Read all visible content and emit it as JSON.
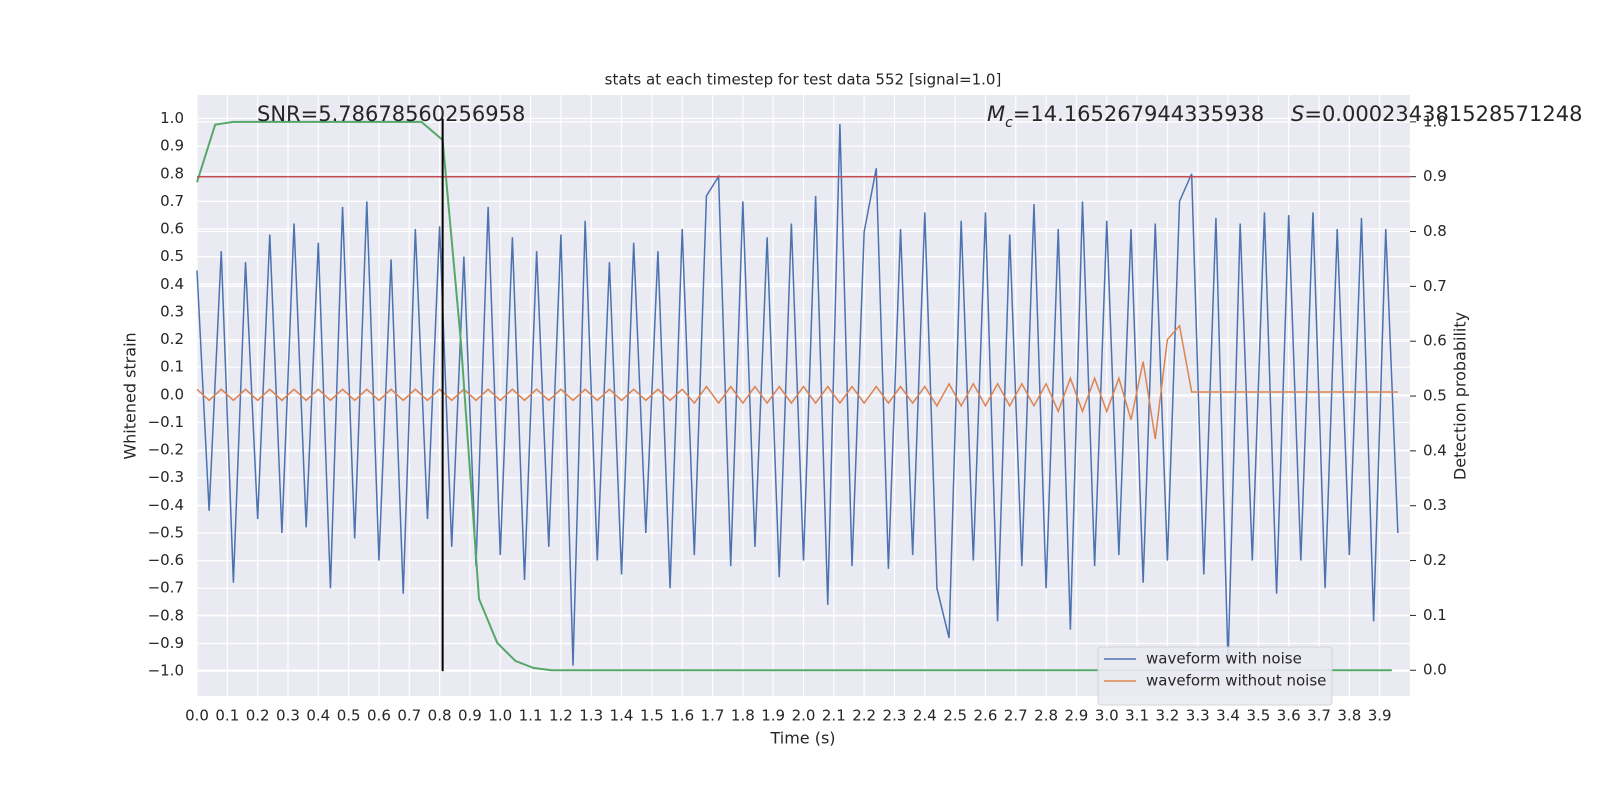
{
  "chart_data": {
    "type": "line",
    "title": "stats at each timestep for test data 552 [signal=1.0]",
    "xlabel": "Time (s)",
    "ylabel": "Whitened strain",
    "y2label": "Detection probability",
    "annotations": {
      "snr": "SNR=5.78678560256958",
      "mc": {
        "symbol": "M",
        "sub": "c",
        "text": "=14.165267944335938"
      },
      "s": {
        "symbol": "S",
        "text": "=0.000234381528571248"
      }
    },
    "grid": true,
    "legend": "lower right",
    "xlim": [
      0,
      4.0
    ],
    "ylim": [
      -1.09,
      1.085
    ],
    "y2lim": [
      -0.047,
      1.049
    ],
    "xticks": [
      {
        "value": 0,
        "label": "0.0"
      },
      0.1,
      0.2,
      0.3,
      0.4,
      0.5,
      0.6,
      0.7,
      0.8,
      0.9,
      {
        "value": 1,
        "label": "1.0"
      },
      1.1,
      1.2,
      1.3,
      1.4,
      1.5,
      1.6,
      1.7,
      1.8,
      1.9,
      {
        "value": 2,
        "label": "2.0"
      },
      2.1,
      2.2,
      2.3,
      2.4,
      2.5,
      2.6,
      2.7,
      2.8,
      2.9,
      {
        "value": 3,
        "label": "3.0"
      },
      3.1,
      3.2,
      3.3,
      3.4,
      3.5,
      3.6,
      3.7,
      3.8,
      3.9
    ],
    "yticks": [
      {
        "value": -1,
        "label": "−1.0"
      },
      {
        "value": -0.9,
        "label": "−0.9"
      },
      {
        "value": -0.8,
        "label": "−0.8"
      },
      {
        "value": -0.7,
        "label": "−0.7"
      },
      {
        "value": -0.6,
        "label": "−0.6"
      },
      {
        "value": -0.5,
        "label": "−0.5"
      },
      {
        "value": -0.4,
        "label": "−0.4"
      },
      {
        "value": -0.3,
        "label": "−0.3"
      },
      {
        "value": -0.2,
        "label": "−0.2"
      },
      {
        "value": -0.1,
        "label": "−0.1"
      },
      {
        "value": 0,
        "label": "0.0"
      },
      0.1,
      0.2,
      0.3,
      0.4,
      0.5,
      0.6,
      0.7,
      0.8,
      0.9,
      {
        "value": 1,
        "label": "1.0"
      }
    ],
    "y2ticks": [
      {
        "value": 0,
        "label": "0.0"
      },
      0.1,
      0.2,
      0.3,
      0.4,
      0.5,
      0.6,
      0.7,
      0.8,
      0.9,
      {
        "value": 1,
        "label": "1.0"
      }
    ],
    "x": [
      0,
      0.04,
      0.08,
      0.12,
      0.16,
      0.2,
      0.24,
      0.28,
      0.32,
      0.36,
      0.4,
      0.44,
      0.48,
      0.52,
      0.56,
      0.6,
      0.64,
      0.68,
      0.72,
      0.76,
      0.8,
      0.84,
      0.88,
      0.92,
      0.96,
      1.0,
      1.04,
      1.08,
      1.12,
      1.16,
      1.2,
      1.24,
      1.28,
      1.32,
      1.36,
      1.4,
      1.44,
      1.48,
      1.52,
      1.56,
      1.6,
      1.64,
      1.68,
      1.72,
      1.76,
      1.8,
      1.84,
      1.88,
      1.92,
      1.96,
      2.0,
      2.04,
      2.08,
      2.12,
      2.16,
      2.2,
      2.24,
      2.28,
      2.32,
      2.36,
      2.4,
      2.44,
      2.48,
      2.52,
      2.56,
      2.6,
      2.64,
      2.68,
      2.72,
      2.76,
      2.8,
      2.84,
      2.88,
      2.92,
      2.96,
      3.0,
      3.04,
      3.08,
      3.12,
      3.16,
      3.2,
      3.24,
      3.28,
      3.32,
      3.36,
      3.4,
      3.44,
      3.48,
      3.52,
      3.56,
      3.6,
      3.64,
      3.68,
      3.72,
      3.76,
      3.8,
      3.84,
      3.88,
      3.92,
      3.96
    ],
    "series": [
      {
        "name": "waveform with noise",
        "color": "#4c72b0",
        "values": [
          0.45,
          -0.42,
          0.52,
          -0.68,
          0.48,
          -0.45,
          0.58,
          -0.5,
          0.62,
          -0.48,
          0.55,
          -0.7,
          0.68,
          -0.52,
          0.7,
          -0.6,
          0.49,
          -0.72,
          0.6,
          -0.45,
          0.61,
          -0.55,
          0.5,
          -0.62,
          0.68,
          -0.58,
          0.57,
          -0.67,
          0.52,
          -0.55,
          0.58,
          -0.98,
          0.63,
          -0.6,
          0.48,
          -0.65,
          0.55,
          -0.5,
          0.52,
          -0.7,
          0.6,
          -0.58,
          0.72,
          0.79,
          -0.62,
          0.7,
          -0.55,
          0.57,
          -0.66,
          0.62,
          -0.6,
          0.72,
          -0.76,
          0.98,
          -0.62,
          0.59,
          0.82,
          -0.63,
          0.6,
          -0.58,
          0.66,
          -0.7,
          -0.88,
          0.63,
          -0.6,
          0.66,
          -0.82,
          0.58,
          -0.62,
          0.69,
          -0.7,
          0.6,
          -0.85,
          0.7,
          -0.62,
          0.63,
          -0.58,
          0.6,
          -0.68,
          0.62,
          -0.6,
          0.7,
          0.8,
          -0.65,
          0.64,
          -0.97,
          0.62,
          -0.6,
          0.66,
          -0.72,
          0.65,
          -0.6,
          0.66,
          -0.7,
          0.6,
          -0.58,
          0.64,
          -0.82,
          0.6,
          -0.5
        ]
      },
      {
        "name": "waveform without noise",
        "color": "#dd8452",
        "values": [
          0.02,
          -0.02,
          0.02,
          -0.02,
          0.02,
          -0.02,
          0.02,
          -0.02,
          0.02,
          -0.02,
          0.02,
          -0.02,
          0.02,
          -0.02,
          0.02,
          -0.02,
          0.02,
          -0.02,
          0.02,
          -0.02,
          0.02,
          -0.02,
          0.02,
          -0.02,
          0.02,
          -0.02,
          0.02,
          -0.02,
          0.02,
          -0.02,
          0.02,
          -0.02,
          0.02,
          -0.02,
          0.02,
          -0.02,
          0.02,
          -0.02,
          0.02,
          -0.02,
          0.02,
          -0.03,
          0.03,
          -0.03,
          0.03,
          -0.03,
          0.03,
          -0.03,
          0.03,
          -0.03,
          0.03,
          -0.03,
          0.03,
          -0.03,
          0.03,
          -0.03,
          0.03,
          -0.03,
          0.03,
          -0.03,
          0.03,
          -0.04,
          0.04,
          -0.04,
          0.04,
          -0.04,
          0.04,
          -0.04,
          0.04,
          -0.04,
          0.04,
          -0.06,
          0.06,
          -0.06,
          0.06,
          -0.06,
          0.06,
          -0.09,
          0.12,
          -0.16,
          0.2,
          0.25,
          0.01,
          0.01,
          0.01,
          0.01,
          0.01,
          0.01,
          0.01,
          0.01,
          0.01,
          0.01,
          0.01,
          0.01,
          0.01,
          0.01,
          0.01,
          0.01,
          0.01,
          0.01
        ]
      },
      {
        "axis": "y2",
        "color": "#55a868",
        "x": [
          0,
          0.06,
          0.12,
          0.18,
          0.74,
          0.81,
          0.87,
          0.93,
          0.99,
          1.05,
          1.11,
          1.17,
          3.94
        ],
        "values": [
          0.89,
          0.995,
          1.0,
          1.0,
          1.0,
          0.967,
          0.6,
          0.13,
          0.05,
          0.017,
          0.004,
          0,
          0
        ]
      }
    ],
    "threshold": {
      "axis": "y2",
      "value": 0.9,
      "color": "#c44e52"
    },
    "vline": {
      "x": 0.81,
      "ymin": -1,
      "ymax": 1,
      "color": "#000000"
    }
  }
}
